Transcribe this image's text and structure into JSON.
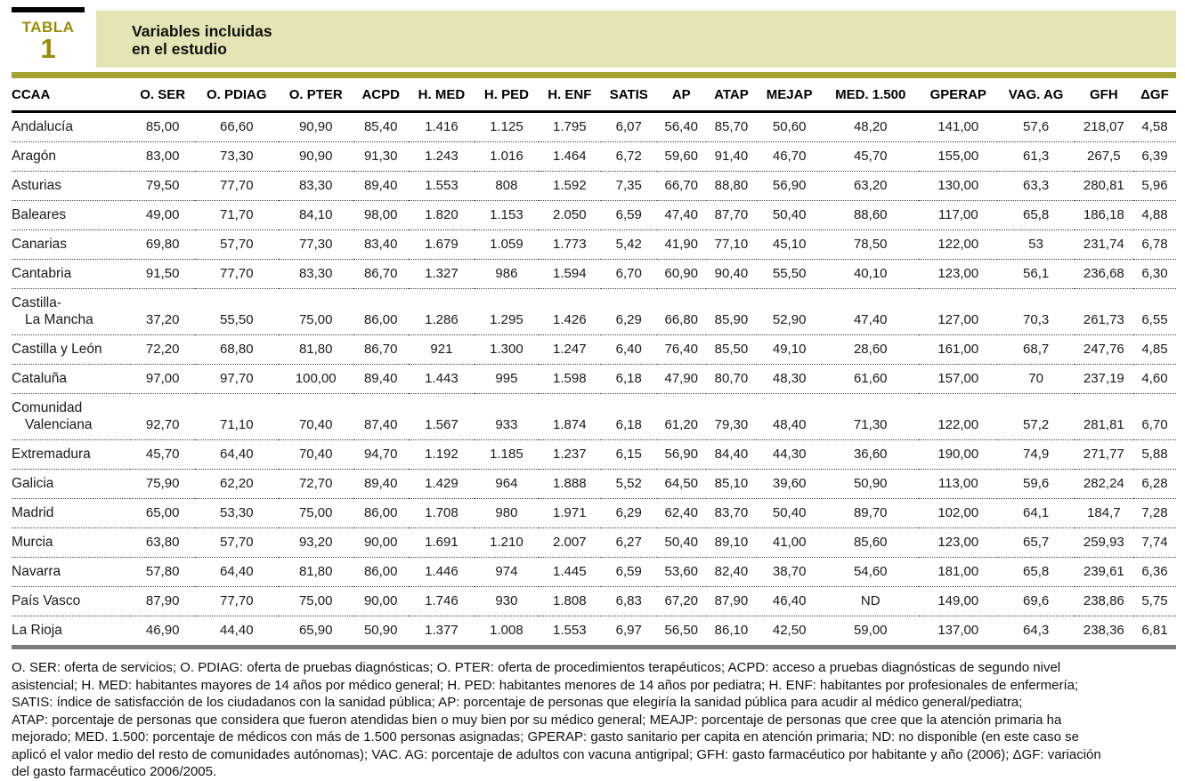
{
  "header": {
    "tabla_label": "TABLA",
    "tabla_number": "1",
    "title_lines": [
      "Variables incluidas",
      "en el estudio"
    ]
  },
  "table": {
    "columns": [
      "CCAA",
      "O. SER",
      "O. PDIAG",
      "O. PTER",
      "ACPD",
      "H. MED",
      "H. PED",
      "H. ENF",
      "SATIS",
      "AP",
      "ATAP",
      "MEJAP",
      "MED. 1.500",
      "GPERAP",
      "VAG. AG",
      "GFH",
      "ΔGF"
    ],
    "rows": [
      {
        "name_lines": [
          "Andalucía"
        ],
        "values": [
          "85,00",
          "66,60",
          "90,90",
          "85,40",
          "1.416",
          "1.125",
          "1.795",
          "6,07",
          "56,40",
          "85,70",
          "50,60",
          "48,20",
          "141,00",
          "57,6",
          "218,07",
          "4,58"
        ]
      },
      {
        "name_lines": [
          "Aragón"
        ],
        "values": [
          "83,00",
          "73,30",
          "90,90",
          "91,30",
          "1.243",
          "1.016",
          "1.464",
          "6,72",
          "59,60",
          "91,40",
          "46,70",
          "45,70",
          "155,00",
          "61,3",
          "267,5",
          "6,39"
        ]
      },
      {
        "name_lines": [
          "Asturias"
        ],
        "values": [
          "79,50",
          "77,70",
          "83,30",
          "89,40",
          "1.553",
          "808",
          "1.592",
          "7,35",
          "66,70",
          "88,80",
          "56,90",
          "63,20",
          "130,00",
          "63,3",
          "280,81",
          "5,96"
        ]
      },
      {
        "name_lines": [
          "Baleares"
        ],
        "values": [
          "49,00",
          "71,70",
          "84,10",
          "98,00",
          "1.820",
          "1.153",
          "2.050",
          "6,59",
          "47,40",
          "87,70",
          "50,40",
          "88,60",
          "117,00",
          "65,8",
          "186,18",
          "4,88"
        ]
      },
      {
        "name_lines": [
          "Canarias"
        ],
        "values": [
          "69,80",
          "57,70",
          "77,30",
          "83,40",
          "1.679",
          "1.059",
          "1.773",
          "5,42",
          "41,90",
          "77,10",
          "45,10",
          "78,50",
          "122,00",
          "53",
          "231,74",
          "6,78"
        ]
      },
      {
        "name_lines": [
          "Cantabria"
        ],
        "values": [
          "91,50",
          "77,70",
          "83,30",
          "86,70",
          "1.327",
          "986",
          "1.594",
          "6,70",
          "60,90",
          "90,40",
          "55,50",
          "40,10",
          "123,00",
          "56,1",
          "236,68",
          "6,30"
        ]
      },
      {
        "name_lines": [
          "Castilla-",
          "La Mancha"
        ],
        "values": [
          "37,20",
          "55,50",
          "75,00",
          "86,00",
          "1.286",
          "1.295",
          "1.426",
          "6,29",
          "66,80",
          "85,90",
          "52,90",
          "47,40",
          "127,00",
          "70,3",
          "261,73",
          "6,55"
        ]
      },
      {
        "name_lines": [
          "Castilla y León"
        ],
        "values": [
          "72,20",
          "68,80",
          "81,80",
          "86,70",
          "921",
          "1.300",
          "1.247",
          "6,40",
          "76,40",
          "85,50",
          "49,10",
          "28,60",
          "161,00",
          "68,7",
          "247,76",
          "4,85"
        ]
      },
      {
        "name_lines": [
          "Cataluña"
        ],
        "values": [
          "97,00",
          "97,70",
          "100,00",
          "89,40",
          "1.443",
          "995",
          "1.598",
          "6,18",
          "47,90",
          "80,70",
          "48,30",
          "61,60",
          "157,00",
          "70",
          "237,19",
          "4,60"
        ]
      },
      {
        "name_lines": [
          "Comunidad",
          "Valenciana"
        ],
        "values": [
          "92,70",
          "71,10",
          "70,40",
          "87,40",
          "1.567",
          "933",
          "1.874",
          "6,18",
          "61,20",
          "79,30",
          "48,40",
          "71,30",
          "122,00",
          "57,2",
          "281,81",
          "6,70"
        ]
      },
      {
        "name_lines": [
          "Extremadura"
        ],
        "values": [
          "45,70",
          "64,40",
          "70,40",
          "94,70",
          "1.192",
          "1.185",
          "1.237",
          "6,15",
          "56,90",
          "84,40",
          "44,30",
          "36,60",
          "190,00",
          "74,9",
          "271,77",
          "5,88"
        ]
      },
      {
        "name_lines": [
          "Galicia"
        ],
        "values": [
          "75,90",
          "62,20",
          "72,70",
          "89,40",
          "1.429",
          "964",
          "1.888",
          "5,52",
          "64,50",
          "85,10",
          "39,60",
          "50,90",
          "113,00",
          "59,6",
          "282,24",
          "6,28"
        ]
      },
      {
        "name_lines": [
          "Madrid"
        ],
        "values": [
          "65,00",
          "53,30",
          "75,00",
          "86,00",
          "1.708",
          "980",
          "1.971",
          "6,29",
          "62,40",
          "83,70",
          "50,40",
          "89,70",
          "102,00",
          "64,1",
          "184,7",
          "7,28"
        ]
      },
      {
        "name_lines": [
          "Murcia"
        ],
        "values": [
          "63,80",
          "57,70",
          "93,20",
          "90,00",
          "1.691",
          "1.210",
          "2.007",
          "6,27",
          "50,40",
          "89,10",
          "41,00",
          "85,60",
          "123,00",
          "65,7",
          "259,93",
          "7,74"
        ]
      },
      {
        "name_lines": [
          "Navarra"
        ],
        "values": [
          "57,80",
          "64,40",
          "81,80",
          "86,00",
          "1.446",
          "974",
          "1.445",
          "6,59",
          "53,60",
          "82,40",
          "38,70",
          "54,60",
          "181,00",
          "65,8",
          "239,61",
          "6,36"
        ]
      },
      {
        "name_lines": [
          "País Vasco"
        ],
        "values": [
          "87,90",
          "77,70",
          "75,00",
          "90,00",
          "1.746",
          "930",
          "1.808",
          "6,83",
          "67,20",
          "87,90",
          "46,40",
          "ND",
          "149,00",
          "69,6",
          "238,86",
          "5,75"
        ]
      },
      {
        "name_lines": [
          "La Rioja"
        ],
        "values": [
          "46,90",
          "44,40",
          "65,90",
          "50,90",
          "1.377",
          "1.008",
          "1.553",
          "6,97",
          "56,50",
          "86,10",
          "42,50",
          "59,00",
          "137,00",
          "64,3",
          "238,36",
          "6,81"
        ]
      }
    ]
  },
  "footnote_lines": [
    "O. SER: oferta de servicios; O. PDIAG: oferta de pruebas diagnósticas; O. PTER: oferta de procedimientos terapéuticos; ACPD: acceso a pruebas diagnósticas de segundo nivel",
    "asistencial; H. MED: habitantes mayores de 14 años por médico general; H. PED: habitantes menores de 14 años por pediatra; H. ENF: habitantes por profesionales de enfermería;",
    "SATIS: índice de satisfacción de los ciudadanos con la sanidad pública; AP: porcentaje de personas que elegiría la sanidad pública para acudir al médico general/pediatra;",
    "ATAP: porcentaje de personas que considera que fueron atendidas bien o muy bien por su médico general; MEAJP: porcentaje de personas que cree que la atención primaria ha",
    "mejorado; MED. 1.500: porcentaje de médicos con más de 1.500 personas asignadas; GPERAP: gasto sanitario per capita en atención primaria; ND: no disponible (en este caso se",
    "aplicó el valor medio del resto de comunidades autónomas); VAC. AG: porcentaje de adultos con vacuna antigripal; GFH: gasto farmacéutico por habitante y año (2006); ΔGF: variación",
    "del gasto farmacéutico 2006/2005."
  ],
  "colors": {
    "olive_text": "#9a8b00",
    "khaki_band": "#e4e4b4",
    "olive_rule": "#a3a334",
    "gray_rule": "#7d7d7d"
  }
}
